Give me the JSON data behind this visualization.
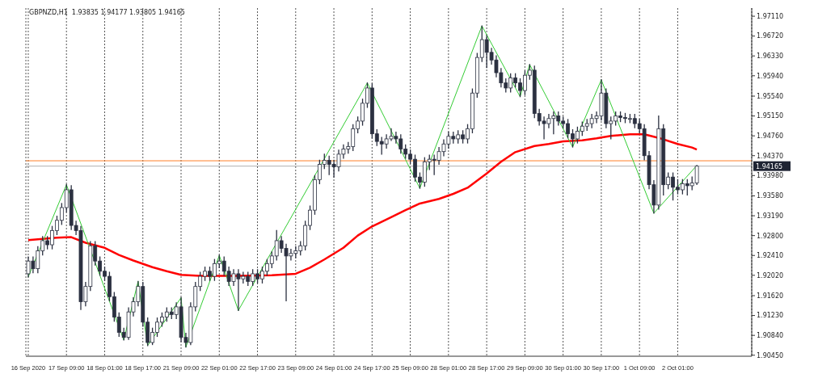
{
  "chart_data": {
    "type": "candlestick",
    "title": "GBPNZD,H1  1.93835 1.94177 1.93805 1.94165",
    "categories": [
      "16 Sep 2020",
      null,
      null,
      null,
      null,
      null,
      null,
      null,
      "17 Sep 09:00",
      null,
      null,
      null,
      null,
      null,
      null,
      null,
      "18 Sep 01:00",
      null,
      null,
      null,
      null,
      null,
      null,
      null,
      "18 Sep 17:00",
      null,
      null,
      null,
      null,
      null,
      null,
      null,
      "21 Sep 09:00",
      null,
      null,
      null,
      null,
      null,
      null,
      null,
      "22 Sep 01:00",
      null,
      null,
      null,
      null,
      null,
      null,
      null,
      "22 Sep 17:00",
      null,
      null,
      null,
      null,
      null,
      null,
      null,
      "23 Sep 09:00",
      null,
      null,
      null,
      null,
      null,
      null,
      null,
      "24 Sep 01:00",
      null,
      null,
      null,
      null,
      null,
      null,
      null,
      "24 Sep 17:00",
      null,
      null,
      null,
      null,
      null,
      null,
      null,
      "25 Sep 09:00",
      null,
      null,
      null,
      null,
      null,
      null,
      null,
      "28 Sep 01:00",
      null,
      null,
      null,
      null,
      null,
      null,
      null,
      "28 Sep 17:00",
      null,
      null,
      null,
      null,
      null,
      null,
      null,
      "29 Sep 09:00",
      null,
      null,
      null,
      null,
      null,
      null,
      null,
      "30 Sep 01:00",
      null,
      null,
      null,
      null,
      null,
      null,
      null,
      "30 Sep 17:00",
      null,
      null,
      null,
      null,
      null,
      null,
      null,
      "1 Oct 09:00",
      null,
      null,
      null,
      null,
      null,
      null,
      null,
      "2 Oct 01:00",
      null,
      null,
      null,
      null,
      null,
      null,
      null,
      null,
      null,
      null,
      null,
      null,
      null,
      null,
      null
    ],
    "color": "#2b3040",
    "ohlc": [
      [
        1.9205,
        1.9238,
        1.9199,
        1.923
      ],
      [
        1.923,
        1.9238,
        1.9207,
        1.9215
      ],
      [
        1.9215,
        1.9258,
        1.9207,
        1.925
      ],
      [
        1.925,
        1.9278,
        1.9242,
        1.927
      ],
      [
        1.927,
        1.9278,
        1.9254,
        1.9262
      ],
      [
        1.9262,
        1.9298,
        1.9254,
        1.929
      ],
      [
        1.929,
        1.9318,
        1.9282,
        1.931
      ],
      [
        1.931,
        1.9343,
        1.9302,
        1.9335
      ],
      [
        1.9335,
        1.938,
        1.9327,
        1.937
      ],
      [
        1.937,
        1.9378,
        1.9292,
        1.93
      ],
      [
        1.93,
        1.9308,
        1.9282,
        1.929
      ],
      [
        1.929,
        1.9298,
        1.9135,
        1.915
      ],
      [
        1.915,
        1.9188,
        1.9142,
        1.918
      ],
      [
        1.918,
        1.9268,
        1.9172,
        1.926
      ],
      [
        1.926,
        1.9268,
        1.9222,
        1.923
      ],
      [
        1.923,
        1.9238,
        1.9202,
        1.921
      ],
      [
        1.921,
        1.9218,
        1.9192,
        1.92
      ],
      [
        1.92,
        1.9208,
        1.9152,
        1.916
      ],
      [
        1.916,
        1.9168,
        1.9112,
        1.912
      ],
      [
        1.912,
        1.9128,
        1.9082,
        1.909
      ],
      [
        1.909,
        1.9098,
        1.9075,
        1.908
      ],
      [
        1.908,
        1.9138,
        1.9076,
        1.913
      ],
      [
        1.913,
        1.9158,
        1.9122,
        1.915
      ],
      [
        1.915,
        1.919,
        1.9142,
        1.918
      ],
      [
        1.918,
        1.9188,
        1.9102,
        1.911
      ],
      [
        1.911,
        1.9118,
        1.9064,
        1.907
      ],
      [
        1.907,
        1.9098,
        1.9066,
        1.909
      ],
      [
        1.909,
        1.9118,
        1.9082,
        1.911
      ],
      [
        1.911,
        1.9128,
        1.9102,
        1.912
      ],
      [
        1.912,
        1.9138,
        1.9112,
        1.913
      ],
      [
        1.913,
        1.9138,
        1.9117,
        1.9125
      ],
      [
        1.9125,
        1.9148,
        1.9117,
        1.914
      ],
      [
        1.914,
        1.9158,
        1.9072,
        1.908
      ],
      [
        1.908,
        1.9088,
        1.9061,
        1.907
      ],
      [
        1.907,
        1.9148,
        1.9066,
        1.914
      ],
      [
        1.914,
        1.9188,
        1.9132,
        1.918
      ],
      [
        1.918,
        1.9208,
        1.9172,
        1.92
      ],
      [
        1.92,
        1.9218,
        1.9192,
        1.921
      ],
      [
        1.921,
        1.9218,
        1.9192,
        1.92
      ],
      [
        1.92,
        1.9233,
        1.9192,
        1.9225
      ],
      [
        1.9225,
        1.9241,
        1.9217,
        1.923
      ],
      [
        1.923,
        1.9238,
        1.9202,
        1.921
      ],
      [
        1.921,
        1.9218,
        1.9182,
        1.919
      ],
      [
        1.919,
        1.9213,
        1.9182,
        1.9205
      ],
      [
        1.9205,
        1.9213,
        1.9133,
        1.9195
      ],
      [
        1.9195,
        1.9208,
        1.9187,
        1.92
      ],
      [
        1.92,
        1.9208,
        1.9182,
        1.919
      ],
      [
        1.919,
        1.9213,
        1.9182,
        1.9205
      ],
      [
        1.9205,
        1.9213,
        1.9187,
        1.9195
      ],
      [
        1.9195,
        1.9218,
        1.9187,
        1.921
      ],
      [
        1.921,
        1.9233,
        1.9202,
        1.9225
      ],
      [
        1.9225,
        1.9248,
        1.9217,
        1.924
      ],
      [
        1.924,
        1.929,
        1.9232,
        1.927
      ],
      [
        1.927,
        1.9278,
        1.9247,
        1.9255
      ],
      [
        1.9255,
        1.9263,
        1.9152,
        1.924
      ],
      [
        1.924,
        1.9253,
        1.9232,
        1.9245
      ],
      [
        1.9245,
        1.9258,
        1.9237,
        1.925
      ],
      [
        1.925,
        1.9268,
        1.9242,
        1.926
      ],
      [
        1.926,
        1.9308,
        1.9252,
        1.93
      ],
      [
        1.93,
        1.9338,
        1.9292,
        1.933
      ],
      [
        1.933,
        1.9398,
        1.9322,
        1.939
      ],
      [
        1.939,
        1.9428,
        1.9382,
        1.942
      ],
      [
        1.942,
        1.944,
        1.9412,
        1.9428
      ],
      [
        1.9428,
        1.9436,
        1.94,
        1.942
      ],
      [
        1.942,
        1.9428,
        1.9395,
        1.9415
      ],
      [
        1.9415,
        1.9448,
        1.9407,
        1.944
      ],
      [
        1.944,
        1.9458,
        1.9432,
        1.945
      ],
      [
        1.945,
        1.9463,
        1.9442,
        1.9455
      ],
      [
        1.9455,
        1.9498,
        1.9447,
        1.949
      ],
      [
        1.949,
        1.9513,
        1.9482,
        1.9505
      ],
      [
        1.9505,
        1.9548,
        1.9497,
        1.954
      ],
      [
        1.954,
        1.958,
        1.9532,
        1.957
      ],
      [
        1.957,
        1.9578,
        1.9472,
        1.948
      ],
      [
        1.948,
        1.9488,
        1.9457,
        1.9465
      ],
      [
        1.9465,
        1.9473,
        1.944,
        1.946
      ],
      [
        1.946,
        1.9478,
        1.9452,
        1.947
      ],
      [
        1.947,
        1.949,
        1.9467,
        1.9475
      ],
      [
        1.9475,
        1.9483,
        1.9462,
        1.947
      ],
      [
        1.947,
        1.9478,
        1.9442,
        1.945
      ],
      [
        1.945,
        1.9458,
        1.9432,
        1.944
      ],
      [
        1.944,
        1.9448,
        1.9422,
        1.943
      ],
      [
        1.943,
        1.9438,
        1.9387,
        1.9395
      ],
      [
        1.9395,
        1.9403,
        1.9373,
        1.9385
      ],
      [
        1.9385,
        1.9433,
        1.9377,
        1.9425
      ],
      [
        1.9425,
        1.9438,
        1.941,
        1.943
      ],
      [
        1.943,
        1.9438,
        1.94,
        1.9428
      ],
      [
        1.9428,
        1.9453,
        1.942,
        1.9445
      ],
      [
        1.9445,
        1.9468,
        1.9437,
        1.946
      ],
      [
        1.946,
        1.9483,
        1.9452,
        1.9475
      ],
      [
        1.9475,
        1.9483,
        1.9462,
        1.947
      ],
      [
        1.947,
        1.9486,
        1.9462,
        1.9478
      ],
      [
        1.9478,
        1.9486,
        1.9462,
        1.947
      ],
      [
        1.947,
        1.9498,
        1.9462,
        1.949
      ],
      [
        1.949,
        1.9568,
        1.9482,
        1.956
      ],
      [
        1.956,
        1.9638,
        1.9552,
        1.963
      ],
      [
        1.963,
        1.9692,
        1.9622,
        1.9665
      ],
      [
        1.9665,
        1.9673,
        1.961,
        1.964
      ],
      [
        1.964,
        1.9648,
        1.9617,
        1.9625
      ],
      [
        1.9625,
        1.9633,
        1.9592,
        1.96
      ],
      [
        1.96,
        1.9608,
        1.9572,
        1.958
      ],
      [
        1.958,
        1.9588,
        1.9562,
        1.957
      ],
      [
        1.957,
        1.9598,
        1.9562,
        1.959
      ],
      [
        1.959,
        1.9598,
        1.9572,
        1.958
      ],
      [
        1.958,
        1.9588,
        1.9553,
        1.9565
      ],
      [
        1.9565,
        1.9603,
        1.9557,
        1.9595
      ],
      [
        1.9595,
        1.9616,
        1.9587,
        1.9605
      ],
      [
        1.9605,
        1.9613,
        1.9512,
        1.952
      ],
      [
        1.952,
        1.9528,
        1.9497,
        1.9505
      ],
      [
        1.9505,
        1.9513,
        1.947,
        1.95
      ],
      [
        1.95,
        1.9518,
        1.9492,
        1.951
      ],
      [
        1.951,
        1.9523,
        1.948,
        1.9515
      ],
      [
        1.9515,
        1.9523,
        1.9497,
        1.9505
      ],
      [
        1.9505,
        1.9513,
        1.9492,
        1.95
      ],
      [
        1.95,
        1.9508,
        1.9472,
        1.948
      ],
      [
        1.948,
        1.9488,
        1.9454,
        1.947
      ],
      [
        1.947,
        1.9493,
        1.9462,
        1.9485
      ],
      [
        1.9485,
        1.9503,
        1.9477,
        1.9495
      ],
      [
        1.9495,
        1.9508,
        1.9487,
        1.95
      ],
      [
        1.95,
        1.9518,
        1.9492,
        1.951
      ],
      [
        1.951,
        1.9523,
        1.9502,
        1.9515
      ],
      [
        1.9515,
        1.9586,
        1.9507,
        1.956
      ],
      [
        1.956,
        1.9568,
        1.9492,
        1.95
      ],
      [
        1.95,
        1.9513,
        1.947,
        1.9505
      ],
      [
        1.9505,
        1.9523,
        1.9497,
        1.9515
      ],
      [
        1.9515,
        1.9523,
        1.9504,
        1.9512
      ],
      [
        1.9512,
        1.952,
        1.9502,
        1.951
      ],
      [
        1.951,
        1.9518,
        1.9502,
        1.951
      ],
      [
        1.951,
        1.9518,
        1.9492,
        1.95
      ],
      [
        1.95,
        1.9508,
        1.9482,
        1.949
      ],
      [
        1.949,
        1.9498,
        1.9429,
        1.9437
      ],
      [
        1.9437,
        1.9445,
        1.9372,
        1.938
      ],
      [
        1.938,
        1.9388,
        1.9324,
        1.934
      ],
      [
        1.934,
        1.9515,
        1.9332,
        1.949
      ],
      [
        1.949,
        1.9498,
        1.936,
        1.938
      ],
      [
        1.938,
        1.9403,
        1.9372,
        1.9395
      ],
      [
        1.9395,
        1.9403,
        1.935,
        1.9375
      ],
      [
        1.9375,
        1.939,
        1.9362,
        1.937
      ],
      [
        1.937,
        1.939,
        1.9362,
        1.9382
      ],
      [
        1.9382,
        1.939,
        1.936,
        1.9378
      ],
      [
        1.9378,
        1.9395,
        1.937,
        1.93835
      ],
      [
        1.93835,
        1.94177,
        1.93805,
        1.94165
      ],
      null,
      null,
      null,
      null,
      null,
      null,
      null,
      null,
      null,
      null,
      null
    ],
    "series": [
      {
        "type": "line",
        "color": "#ff0000",
        "values": [
          1.9271,
          null,
          null,
          null,
          null,
          null,
          1.9276,
          null,
          null,
          1.9277,
          null,
          null,
          1.9266,
          null,
          null,
          null,
          1.9256,
          null,
          null,
          1.9242,
          null,
          null,
          1.9231,
          null,
          null,
          null,
          1.9218,
          null,
          null,
          1.921,
          null,
          null,
          1.9203,
          null,
          null,
          null,
          1.9201,
          null,
          null,
          null,
          null,
          null,
          null,
          null,
          1.9201,
          null,
          null,
          null,
          null,
          null,
          null,
          1.9202,
          null,
          null,
          null,
          null,
          1.9205,
          null,
          null,
          1.9217,
          null,
          null,
          1.9233,
          null,
          null,
          null,
          1.9256,
          null,
          null,
          1.928,
          null,
          null,
          1.9298,
          null,
          null,
          null,
          1.9316,
          null,
          null,
          1.933,
          null,
          null,
          1.9343,
          null,
          null,
          null,
          1.9352,
          null,
          null,
          1.9362,
          null,
          null,
          1.9374,
          null,
          null,
          null,
          1.9402,
          null,
          null,
          1.9425,
          null,
          null,
          1.9444,
          null,
          null,
          null,
          1.9456,
          null,
          null,
          1.946,
          null,
          null,
          1.9465,
          null,
          null,
          null,
          1.9467,
          null,
          null,
          1.9471,
          null,
          null,
          1.9476,
          null,
          null,
          null,
          1.9479,
          null,
          null,
          1.9479,
          null,
          null,
          1.9472,
          null,
          null,
          null,
          1.946,
          null,
          null,
          1.9453,
          1.9449,
          null,
          null,
          null,
          null,
          null,
          null,
          null,
          null,
          null,
          null,
          null
        ]
      },
      {
        "type": "line",
        "color": "#33cc33",
        "values": [
          1.9199,
          null,
          null,
          null,
          null,
          null,
          null,
          null,
          1.938,
          null,
          null,
          null,
          null,
          null,
          null,
          null,
          null,
          null,
          null,
          null,
          1.9075,
          null,
          null,
          1.919,
          null,
          1.9064,
          null,
          null,
          null,
          null,
          null,
          null,
          1.9158,
          1.9061,
          null,
          null,
          null,
          null,
          null,
          null,
          1.9241,
          null,
          null,
          null,
          1.9133,
          null,
          null,
          null,
          null,
          null,
          null,
          null,
          null,
          null,
          null,
          null,
          null,
          null,
          null,
          null,
          null,
          null,
          null,
          null,
          null,
          null,
          null,
          null,
          null,
          null,
          null,
          1.958,
          null,
          null,
          null,
          null,
          null,
          null,
          null,
          null,
          null,
          null,
          1.9373,
          null,
          null,
          null,
          null,
          null,
          null,
          null,
          null,
          null,
          null,
          null,
          null,
          1.9692,
          null,
          null,
          null,
          null,
          null,
          null,
          null,
          1.9553,
          null,
          1.9616,
          null,
          null,
          null,
          null,
          null,
          null,
          null,
          null,
          1.9454,
          null,
          null,
          null,
          null,
          null,
          1.9586,
          null,
          null,
          null,
          null,
          null,
          null,
          null,
          null,
          null,
          null,
          1.9324,
          null,
          null,
          null,
          null,
          null,
          null,
          null,
          null,
          1.94177,
          null,
          null,
          null,
          null,
          null,
          null,
          null,
          null,
          null,
          null,
          null
        ]
      }
    ],
    "ylim": [
      1.9043,
      1.9727
    ],
    "yticks": [
      {
        "value": 1.9045,
        "label": "1.90450"
      },
      {
        "value": 1.9084,
        "label": "1.90840"
      },
      {
        "value": 1.9123,
        "label": "1.91230"
      },
      {
        "value": 1.9162,
        "label": "1.91620"
      },
      {
        "value": 1.9202,
        "label": "1.92020"
      },
      {
        "value": 1.9241,
        "label": "1.92410"
      },
      {
        "value": 1.928,
        "label": "1.92800"
      },
      {
        "value": 1.9319,
        "label": "1.93190"
      },
      {
        "value": 1.9358,
        "label": "1.93580"
      },
      {
        "value": 1.9398,
        "label": "1.93980"
      },
      {
        "value": 1.9437,
        "label": "1.94370"
      },
      {
        "value": 1.9476,
        "label": "1.94760"
      },
      {
        "value": 1.9515,
        "label": "1.95150"
      },
      {
        "value": 1.9554,
        "label": "1.95540"
      },
      {
        "value": 1.9594,
        "label": "1.95940"
      },
      {
        "value": 1.9633,
        "label": "1.96330"
      },
      {
        "value": 1.9672,
        "label": "1.96720"
      },
      {
        "value": 1.9711,
        "label": "1.97110"
      }
    ],
    "grid": "x",
    "ref_lines": [
      {
        "axis": "y",
        "value": 1.9427,
        "color": "#ff7f27"
      },
      {
        "axis": "y",
        "value": 1.94165,
        "label": "1.94165",
        "color": "#b0b0b0"
      }
    ]
  }
}
